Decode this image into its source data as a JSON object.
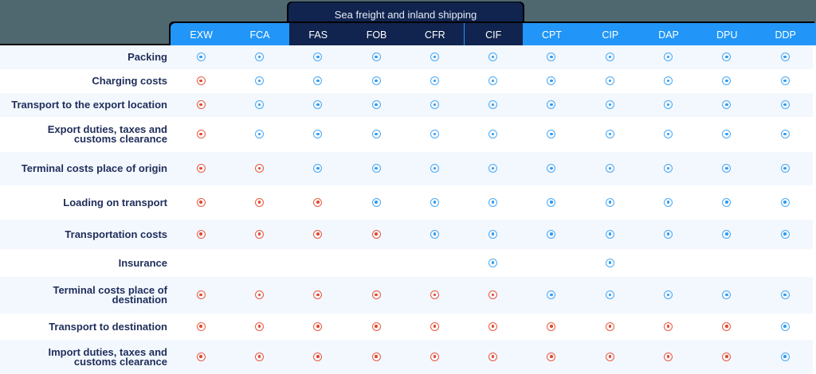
{
  "colors": {
    "background": "#4f6870",
    "header_blue": "#2196f8",
    "header_navy": "#11244f",
    "row_alt": "#f3f8fe",
    "row_plain": "#ffffff",
    "label_text": "#1f2d5a",
    "seller_mark": "#2d9bf3",
    "buyer_mark": "#e8452c"
  },
  "legend_semantics": {
    "seller": "blue-target-icon",
    "buyer": "red-target-icon"
  },
  "group_header": {
    "title": "Sea freight and inland shipping",
    "columns": [
      "FAS",
      "FOB",
      "CFR",
      "CIF"
    ]
  },
  "columns": [
    "EXW",
    "FCA",
    "FAS",
    "FOB",
    "CFR",
    "CIF",
    "CPT",
    "CIP",
    "DAP",
    "DPU",
    "DDP"
  ],
  "rows": [
    {
      "label": "Packing",
      "cells": [
        "seller",
        "seller",
        "seller",
        "seller",
        "seller",
        "seller",
        "seller",
        "seller",
        "seller",
        "seller",
        "seller"
      ]
    },
    {
      "label": "Charging costs",
      "cells": [
        "buyer",
        "seller",
        "seller",
        "seller",
        "seller",
        "seller",
        "seller",
        "seller",
        "seller",
        "seller",
        "seller"
      ]
    },
    {
      "label": "Transport to the export location",
      "cells": [
        "buyer",
        "seller",
        "seller",
        "seller",
        "seller",
        "seller",
        "seller",
        "seller",
        "seller",
        "seller",
        "seller"
      ]
    },
    {
      "label": "Export duties, taxes and customs clearance",
      "cells": [
        "buyer",
        "seller",
        "seller",
        "seller",
        "seller",
        "seller",
        "seller",
        "seller",
        "seller",
        "seller",
        "seller"
      ]
    },
    {
      "label": "Terminal costs place of origin",
      "cells": [
        "buyer",
        "buyer",
        "seller",
        "seller",
        "seller",
        "seller",
        "seller",
        "seller",
        "seller",
        "seller",
        "seller"
      ]
    },
    {
      "label": "Loading on transport",
      "cells": [
        "buyer",
        "buyer",
        "buyer",
        "seller",
        "seller",
        "seller",
        "seller",
        "seller",
        "seller",
        "seller",
        "seller"
      ]
    },
    {
      "label": "Transportation costs",
      "cells": [
        "buyer",
        "buyer",
        "buyer",
        "buyer",
        "seller",
        "seller",
        "seller",
        "seller",
        "seller",
        "seller",
        "seller"
      ]
    },
    {
      "label": "Insurance",
      "cells": [
        "",
        "",
        "",
        "",
        "",
        "seller",
        "",
        "seller",
        "",
        "",
        ""
      ]
    },
    {
      "label": "Terminal costs place of destination",
      "cells": [
        "buyer",
        "buyer",
        "buyer",
        "buyer",
        "buyer",
        "buyer",
        "seller",
        "seller",
        "seller",
        "seller",
        "seller"
      ]
    },
    {
      "label": "Transport to destination",
      "cells": [
        "buyer",
        "buyer",
        "buyer",
        "buyer",
        "buyer",
        "buyer",
        "buyer",
        "buyer",
        "buyer",
        "buyer",
        "seller"
      ]
    },
    {
      "label": "Import duties, taxes and customs clearance",
      "cells": [
        "buyer",
        "buyer",
        "buyer",
        "buyer",
        "buyer",
        "buyer",
        "buyer",
        "buyer",
        "buyer",
        "buyer",
        "seller"
      ]
    }
  ]
}
